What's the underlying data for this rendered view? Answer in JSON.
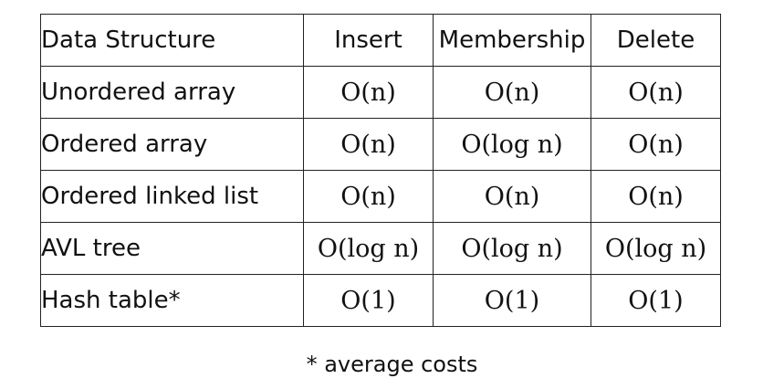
{
  "table": {
    "headers": [
      "Data Structure",
      "Insert",
      "Membership",
      "Delete"
    ],
    "rows": [
      {
        "name": "Unordered array",
        "insert": "O(n)",
        "membership": "O(n)",
        "delete": "O(n)"
      },
      {
        "name": "Ordered array",
        "insert": "O(n)",
        "membership": "O(log n)",
        "delete": "O(n)"
      },
      {
        "name": "Ordered linked list",
        "insert": "O(n)",
        "membership": "O(n)",
        "delete": "O(n)"
      },
      {
        "name": "AVL tree",
        "insert": "O(log n)",
        "membership": "O(log n)",
        "delete": "O(log n)"
      },
      {
        "name": "Hash table*",
        "insert": "O(1)",
        "membership": "O(1)",
        "delete": "O(1)"
      }
    ]
  },
  "footnote": "* average costs"
}
